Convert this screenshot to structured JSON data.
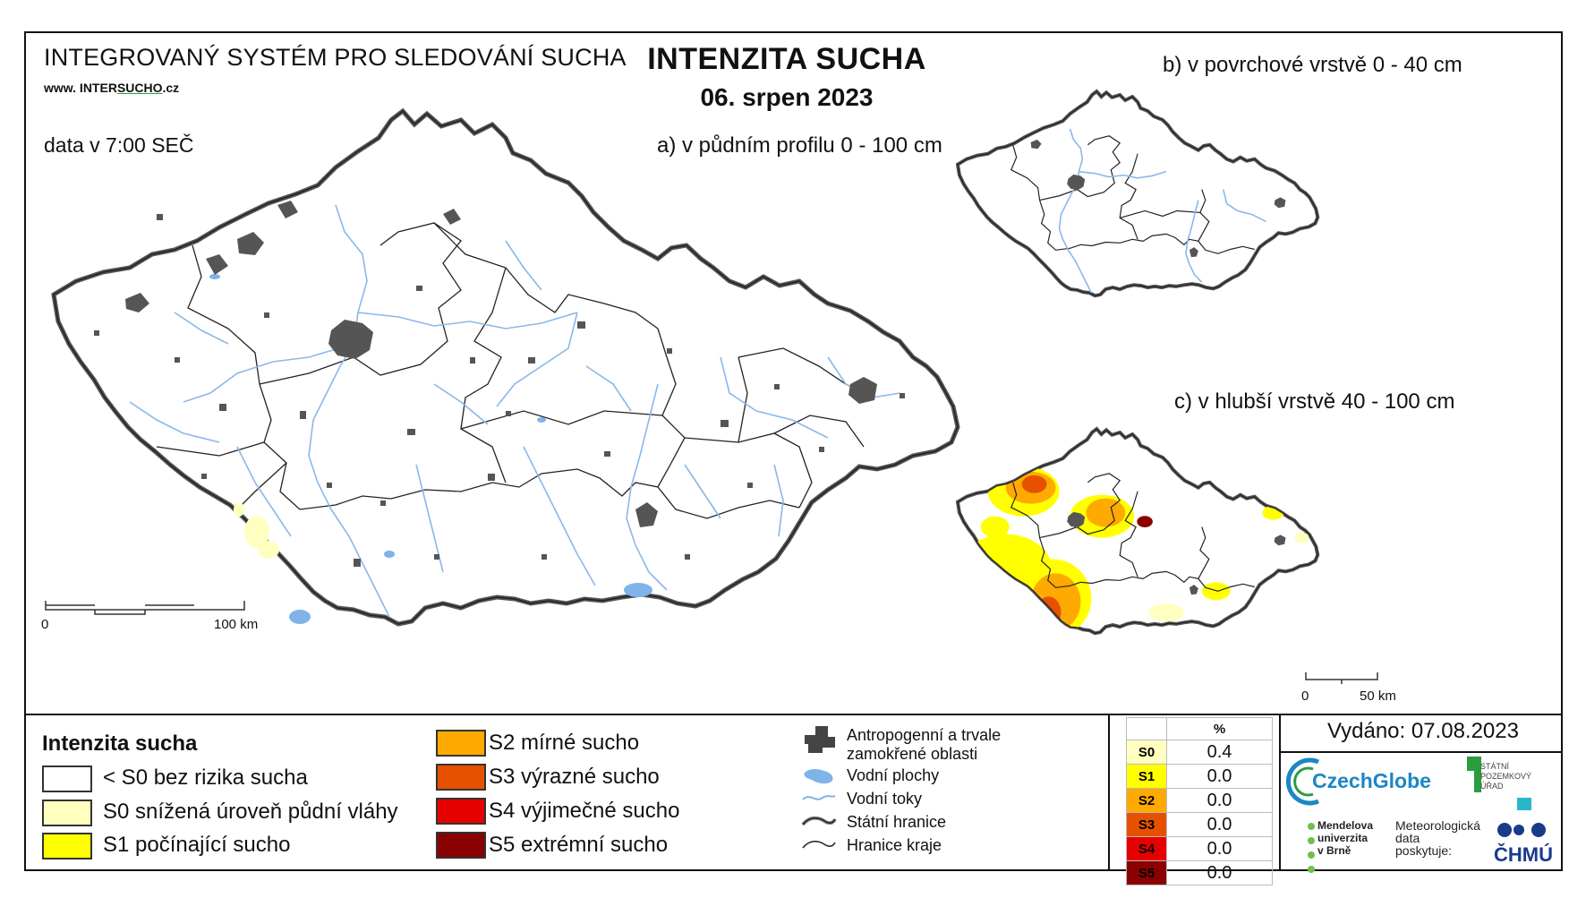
{
  "header": {
    "system_title": "INTEGROVANÝ SYSTÉM PRO SLEDOVÁNÍ SUCHA",
    "website_prefix": "www. INTER",
    "website_mid": "SUCHO",
    "website_suffix": ".cz",
    "data_time": "data v 7:00 SEČ",
    "main_title": "INTENZITA SUCHA",
    "date": "06. srpen 2023"
  },
  "maps": {
    "a_label": "a) v půdním profilu 0 - 100 cm",
    "b_label": "b) v povrchové vrstvě 0 - 40 cm",
    "c_label": "c) v hlubší vrstvě 40 - 100 cm",
    "scale_main": {
      "zero": "0",
      "end": "100 km"
    },
    "scale_small": {
      "zero": "0",
      "end": "50 km"
    }
  },
  "legend": {
    "title": "Intenzita sucha",
    "classes": [
      {
        "label": "< S0 bez rizika sucha",
        "color": "#ffffff"
      },
      {
        "label": "S0 snížená úroveň půdní vláhy",
        "color": "#ffffc0"
      },
      {
        "label": "S1 počínající sucho",
        "color": "#ffff00"
      },
      {
        "label": "S2 mírné sucho",
        "color": "#ffaa00"
      },
      {
        "label": "S3 výrazné sucho",
        "color": "#e65100"
      },
      {
        "label": "S4 výjimečné sucho",
        "color": "#e60000"
      },
      {
        "label": "S5 extrémní sucho",
        "color": "#8b0000"
      }
    ],
    "symbols": [
      {
        "label": "Antropogenní a trvale zamokřené oblasti",
        "icon": "urban-area-icon"
      },
      {
        "label": "Vodní plochy",
        "icon": "water-body-icon"
      },
      {
        "label": "Vodní toky",
        "icon": "river-icon"
      },
      {
        "label": "Státní hranice",
        "icon": "state-border-icon"
      },
      {
        "label": "Hranice kraje",
        "icon": "region-border-icon"
      }
    ]
  },
  "stats": {
    "header": "%",
    "rows": [
      {
        "cls": "S0",
        "value": "0.4",
        "color": "#ffffc0",
        "text": "#000"
      },
      {
        "cls": "S1",
        "value": "0.0",
        "color": "#ffff00",
        "text": "#000"
      },
      {
        "cls": "S2",
        "value": "0.0",
        "color": "#ffaa00",
        "text": "#000"
      },
      {
        "cls": "S3",
        "value": "0.0",
        "color": "#e65100",
        "text": "#000"
      },
      {
        "cls": "S4",
        "value": "0.0",
        "color": "#e60000",
        "text": "#000"
      },
      {
        "cls": "S5",
        "value": "0.0",
        "color": "#8b0000",
        "text": "#000"
      }
    ]
  },
  "issued": "Vydáno: 07.08.2023",
  "logos": {
    "czechglobe": "CzechGlobe",
    "spu_lines": [
      "STÁTNÍ",
      "POZEMKOVÝ",
      "ÚŘAD"
    ],
    "mendel_lines": [
      "Mendelova",
      "univerzita",
      "v Brně"
    ],
    "met_lines": [
      "Meteorologická",
      "data",
      "poskytuje:"
    ],
    "chmu": "ČHMÚ"
  }
}
